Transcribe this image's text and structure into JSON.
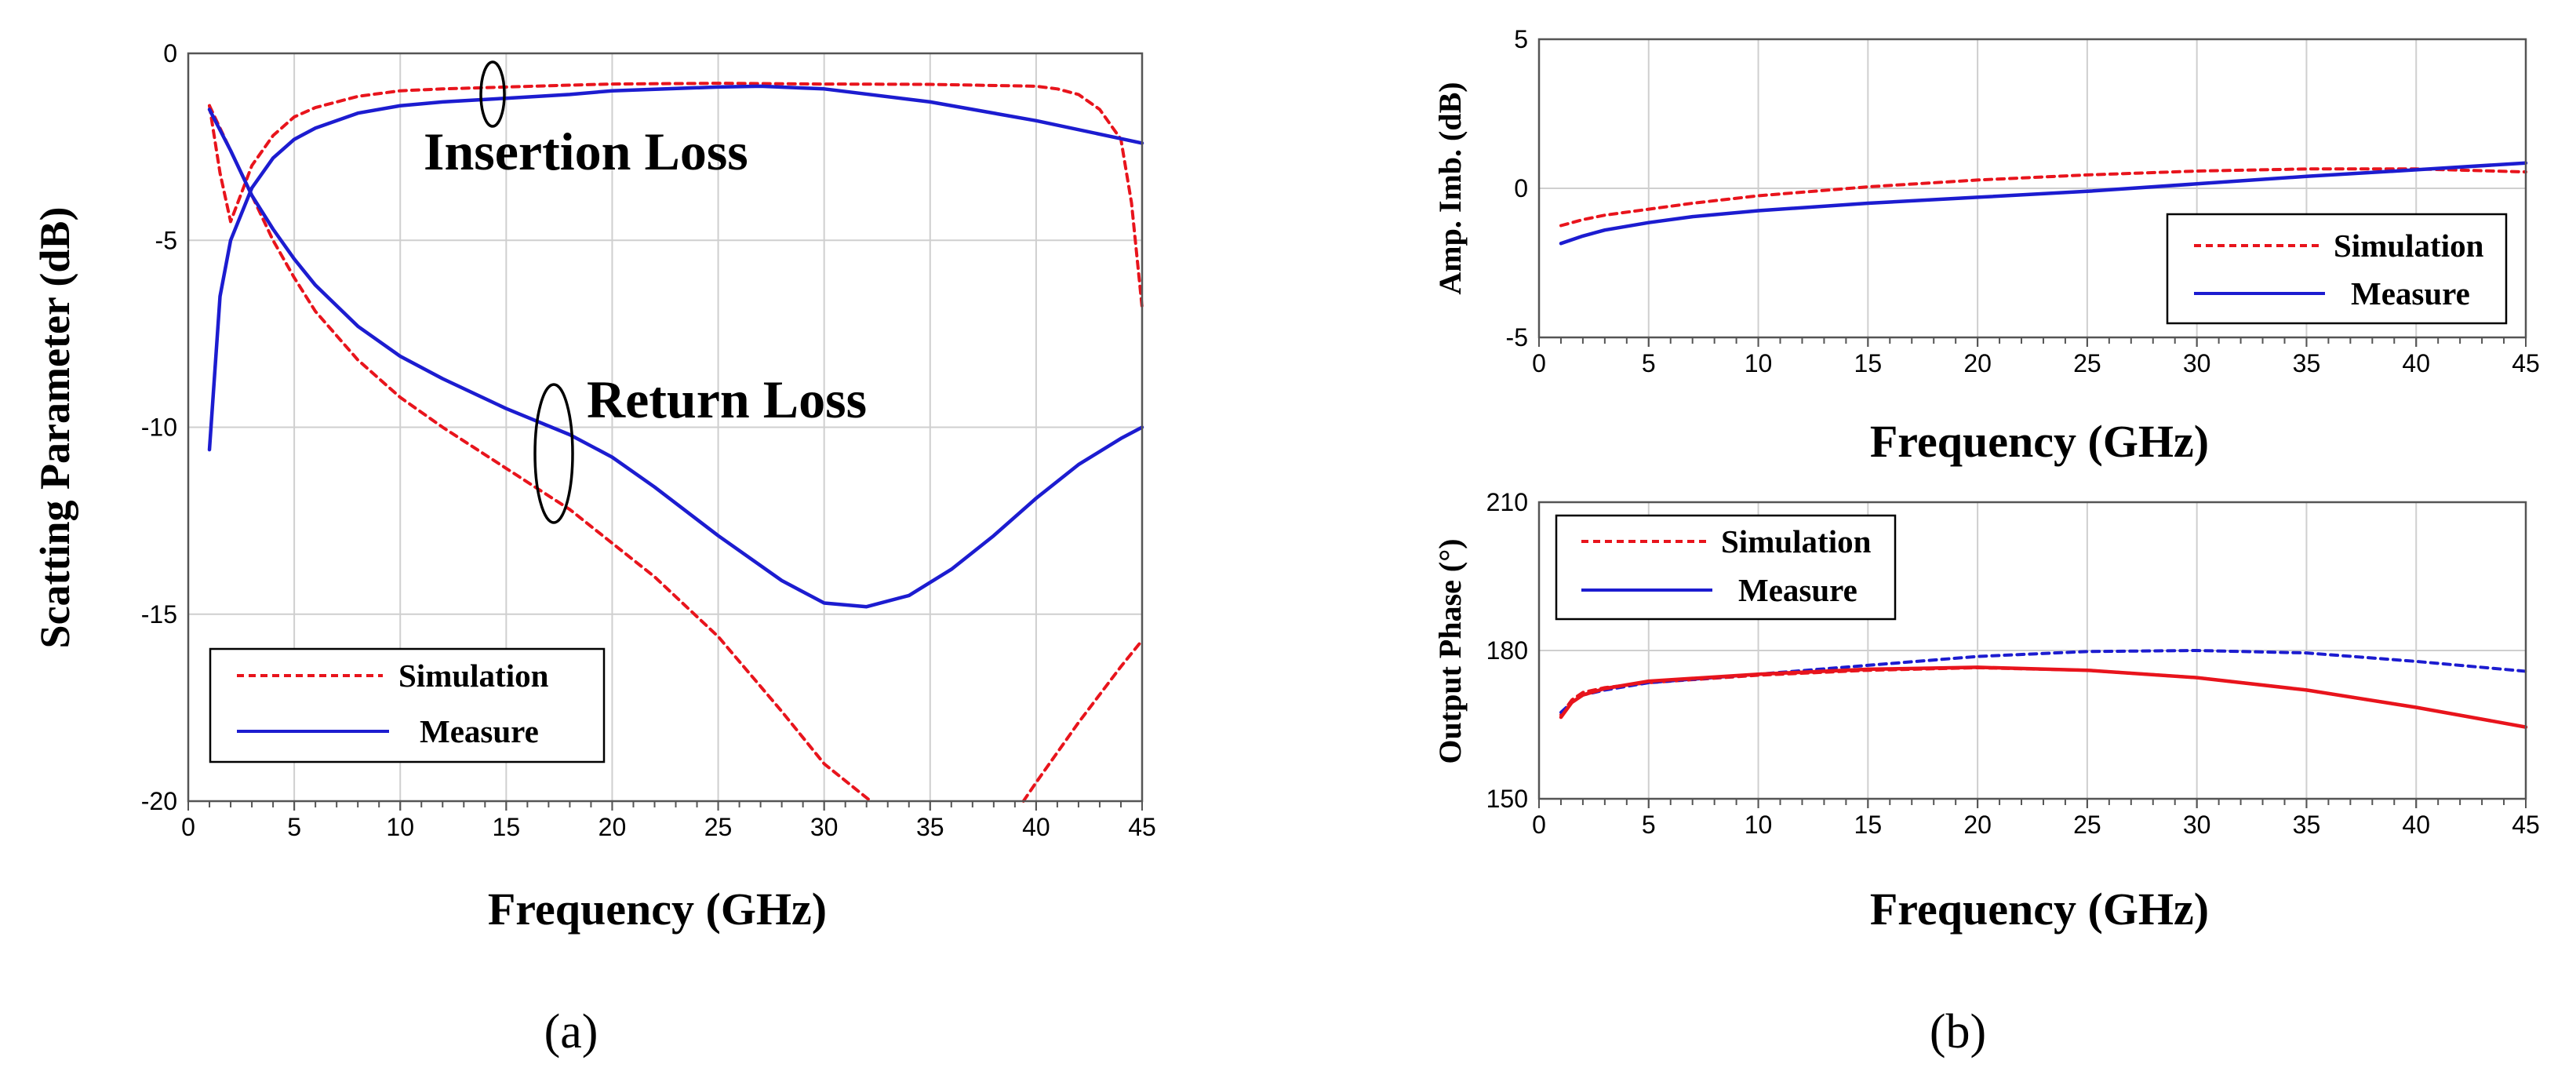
{
  "chart_data": [
    {
      "id": "a",
      "type": "line",
      "caption": "(a)",
      "xlabel": "Frequency (GHz)",
      "ylabel": "Scatting Parameter (dB)",
      "xlim": [
        0,
        45
      ],
      "ylim": [
        -20,
        0
      ],
      "xticks": [
        0,
        5,
        10,
        15,
        20,
        25,
        30,
        35,
        40,
        45
      ],
      "yticks": [
        0,
        -5,
        -10,
        -15,
        -20
      ],
      "ytick_labels": [
        "0",
        "-5",
        "-10",
        "-15",
        "-20"
      ],
      "grid": true,
      "legend_position": "bottom-left",
      "annotations": [
        "Insertion Loss",
        "Return Loss"
      ],
      "series": [
        {
          "name": "Simulation",
          "group": "Insertion Loss",
          "color": "#e8141c",
          "dash": true,
          "x": [
            1,
            1.5,
            2,
            3,
            4,
            5,
            6,
            8,
            10,
            12,
            15,
            18,
            20,
            25,
            30,
            35,
            40,
            41,
            42,
            43,
            44,
            44.5,
            45
          ],
          "y": [
            -1.4,
            -3.2,
            -4.5,
            -3.0,
            -2.2,
            -1.7,
            -1.45,
            -1.15,
            -1.0,
            -0.95,
            -0.9,
            -0.85,
            -0.82,
            -0.8,
            -0.82,
            -0.83,
            -0.88,
            -0.95,
            -1.1,
            -1.5,
            -2.3,
            -4.0,
            -6.8
          ]
        },
        {
          "name": "Measure",
          "group": "Insertion Loss",
          "color": "#1c1cd0",
          "dash": false,
          "x": [
            1,
            1.5,
            2,
            3,
            4,
            5,
            6,
            8,
            10,
            12,
            15,
            18,
            20,
            25,
            27,
            30,
            35,
            40,
            45
          ],
          "y": [
            -10.6,
            -6.5,
            -5.0,
            -3.6,
            -2.8,
            -2.3,
            -2.0,
            -1.6,
            -1.4,
            -1.3,
            -1.2,
            -1.1,
            -1.0,
            -0.9,
            -0.88,
            -0.95,
            -1.3,
            -1.8,
            -2.4
          ]
        },
        {
          "name": "Simulation",
          "group": "Return Loss",
          "color": "#e8141c",
          "dash": true,
          "x": [
            1,
            2,
            3,
            4,
            5,
            6,
            8,
            10,
            12,
            15,
            18,
            20,
            22,
            25,
            28,
            30,
            32.2
          ],
          "y": [
            -1.4,
            -2.6,
            -3.8,
            -5.0,
            -6.0,
            -6.9,
            -8.2,
            -9.2,
            -10.0,
            -11.1,
            -12.2,
            -13.1,
            -14.0,
            -15.6,
            -17.6,
            -19.0,
            -20.0
          ]
        },
        {
          "name": "Simulation",
          "group": "Return Loss",
          "color": "#e8141c",
          "dash": true,
          "x": [
            39.4,
            40,
            42,
            44,
            45
          ],
          "y": [
            -20.0,
            -19.5,
            -17.9,
            -16.4,
            -15.7
          ]
        },
        {
          "name": "Measure",
          "group": "Return Loss",
          "color": "#1c1cd0",
          "dash": false,
          "x": [
            1,
            2,
            3,
            4,
            5,
            6,
            8,
            10,
            12,
            15,
            18,
            20,
            22,
            25,
            28,
            30,
            32,
            34,
            36,
            38,
            40,
            42,
            44,
            45
          ],
          "y": [
            -1.5,
            -2.6,
            -3.8,
            -4.7,
            -5.5,
            -6.2,
            -7.3,
            -8.1,
            -8.7,
            -9.5,
            -10.2,
            -10.8,
            -11.6,
            -12.9,
            -14.1,
            -14.7,
            -14.8,
            -14.5,
            -13.8,
            -12.9,
            -11.9,
            -11.0,
            -10.3,
            -10.0
          ]
        }
      ]
    },
    {
      "id": "b-top",
      "type": "line",
      "xlabel": "Frequency (GHz)",
      "ylabel": "Amp. Imb. (dB)",
      "xlim": [
        0,
        45
      ],
      "ylim": [
        -5,
        5
      ],
      "xticks": [
        0,
        5,
        10,
        15,
        20,
        25,
        30,
        35,
        40,
        45
      ],
      "yticks": [
        5,
        0,
        -5
      ],
      "ytick_labels": [
        "5",
        "0",
        "-5"
      ],
      "grid": true,
      "legend_position": "right",
      "series": [
        {
          "name": "Simulation",
          "color": "#e8141c",
          "dash": true,
          "x": [
            1,
            2,
            3,
            5,
            7,
            10,
            15,
            20,
            25,
            30,
            35,
            40,
            45
          ],
          "y": [
            -1.25,
            -1.05,
            -0.9,
            -0.7,
            -0.5,
            -0.25,
            0.05,
            0.28,
            0.45,
            0.58,
            0.65,
            0.65,
            0.55
          ]
        },
        {
          "name": "Measure",
          "color": "#1c1cd0",
          "dash": false,
          "x": [
            1,
            2,
            3,
            5,
            7,
            10,
            15,
            20,
            25,
            30,
            35,
            40,
            45
          ],
          "y": [
            -1.85,
            -1.6,
            -1.4,
            -1.15,
            -0.95,
            -0.75,
            -0.5,
            -0.3,
            -0.1,
            0.15,
            0.4,
            0.62,
            0.85
          ]
        }
      ]
    },
    {
      "id": "b-bottom",
      "type": "line",
      "caption": "(b)",
      "xlabel": "Frequency (GHz)",
      "ylabel": "Output Phase (°)",
      "xlim": [
        0,
        45
      ],
      "ylim": [
        150,
        210
      ],
      "xticks": [
        0,
        5,
        10,
        15,
        20,
        25,
        30,
        35,
        40,
        45
      ],
      "yticks": [
        210,
        180,
        150
      ],
      "ytick_labels": [
        "210",
        "180",
        "150"
      ],
      "grid": true,
      "legend_position": "top-left",
      "series": [
        {
          "name": "Simulation",
          "color": "#e8141c",
          "dash": true,
          "x": [
            1,
            1.5,
            2,
            3,
            5,
            10,
            15,
            20,
            25,
            30,
            35,
            40,
            45
          ],
          "y": [
            167,
            170,
            171.5,
            172.5,
            173.5,
            175.0,
            176.0,
            176.5,
            176.0,
            174.5,
            172.0,
            168.5,
            164.5
          ]
        },
        {
          "name": "Measure",
          "color": "#1c1cd0",
          "dash": true,
          "x": [
            1,
            1.5,
            2,
            3,
            5,
            10,
            15,
            20,
            25,
            30,
            35,
            40,
            45
          ],
          "y": [
            167.5,
            169.5,
            171,
            172,
            173.5,
            175.2,
            177.0,
            178.8,
            179.8,
            180.0,
            179.5,
            177.8,
            175.8
          ]
        },
        {
          "name": "Measure",
          "color": "#e8141c",
          "dash": false,
          "x": [
            1,
            1.5,
            2,
            3,
            5,
            10,
            15,
            20,
            25,
            30,
            35,
            40,
            45
          ],
          "y": [
            166.5,
            169.5,
            171,
            172.3,
            173.8,
            175.2,
            176.2,
            176.6,
            176.0,
            174.5,
            172.0,
            168.5,
            164.5
          ]
        }
      ]
    }
  ],
  "legend": {
    "simulation": "Simulation",
    "measure": "Measure"
  }
}
